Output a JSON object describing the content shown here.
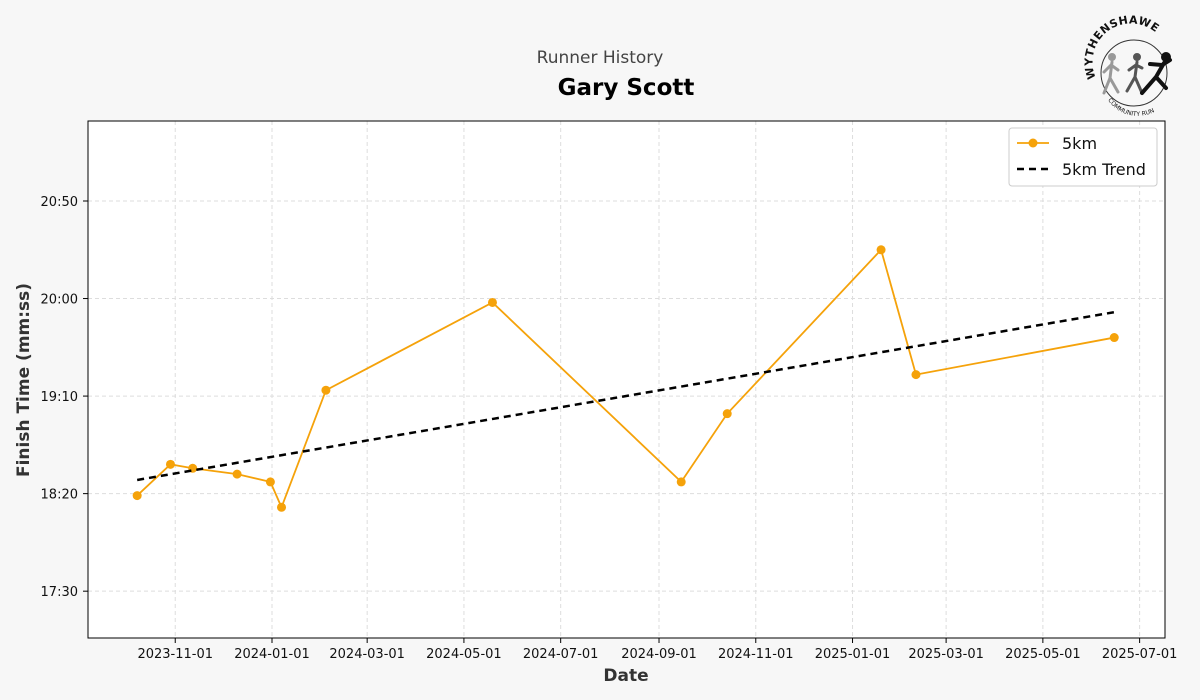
{
  "chart_data": {
    "type": "line",
    "title": "Runner History",
    "subtitle": "Gary Scott",
    "x_label": "Date",
    "y_label": "Finish Time (mm:ss)",
    "logo": {
      "top_text": "WYTHENSHAWE",
      "bottom_text": "COMMUNITY RUN"
    },
    "xlim": [
      "2023-09-07",
      "2025-07-17"
    ],
    "xticks": [
      "2023-11-01",
      "2024-01-01",
      "2024-03-01",
      "2024-05-01",
      "2024-07-01",
      "2024-09-01",
      "2024-11-01",
      "2025-01-01",
      "2025-03-01",
      "2025-05-01",
      "2025-07-01"
    ],
    "ylim": [
      1026,
      1291
    ],
    "yticks": [
      {
        "value": 1050,
        "label": "17:30"
      },
      {
        "value": 1100,
        "label": "18:20"
      },
      {
        "value": 1150,
        "label": "19:10"
      },
      {
        "value": 1200,
        "label": "20:00"
      },
      {
        "value": 1250,
        "label": "20:50"
      }
    ],
    "grid": true,
    "legend": "upper right",
    "series": [
      {
        "name": "5km",
        "color": "#f5a20a",
        "style": "solid",
        "markers": true,
        "x": [
          "2023-10-08",
          "2023-10-29",
          "2023-11-12",
          "2023-12-10",
          "2023-12-31",
          "2024-01-07",
          "2024-02-04",
          "2024-05-19",
          "2024-09-15",
          "2024-10-14",
          "2025-01-19",
          "2025-02-10",
          "2025-06-15"
        ],
        "values": [
          1099,
          1115,
          1113,
          1110,
          1106,
          1093,
          1153,
          1198,
          1106,
          1141,
          1225,
          1161,
          1180
        ]
      },
      {
        "name": "5km Trend",
        "color": "#000000",
        "style": "dashed",
        "markers": false,
        "x": [
          "2023-10-08",
          "2025-06-15"
        ],
        "values": [
          1107,
          1193
        ]
      }
    ]
  }
}
